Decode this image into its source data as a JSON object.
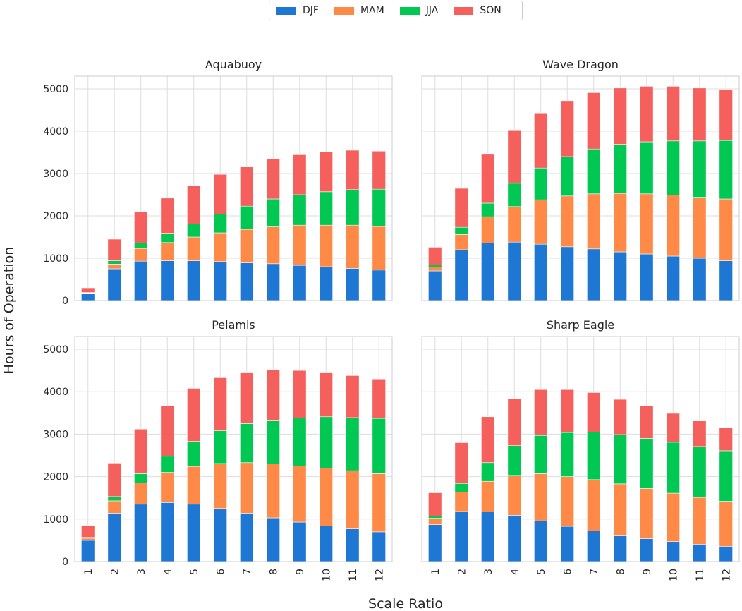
{
  "chart_data": {
    "type": "bar",
    "stacked": true,
    "xlabel": "Scale Ratio",
    "ylabel": "Hours of Operation",
    "ylim": [
      0,
      5300
    ],
    "yticks": [
      0,
      1000,
      2000,
      3000,
      4000,
      5000
    ],
    "categories": [
      "1",
      "2",
      "3",
      "4",
      "5",
      "6",
      "7",
      "8",
      "9",
      "10",
      "11",
      "12"
    ],
    "legend": [
      {
        "name": "DJF",
        "color": "#1f77d4"
      },
      {
        "name": "MAM",
        "color": "#ff8a47"
      },
      {
        "name": "JJA",
        "color": "#00c853"
      },
      {
        "name": "SON",
        "color": "#f5605d"
      }
    ],
    "panels": [
      {
        "title": "Aquabuoy",
        "series": [
          {
            "name": "DJF",
            "values": [
              170,
              750,
              930,
              940,
              940,
              920,
              890,
              870,
              830,
              800,
              760,
              720
            ]
          },
          {
            "name": "MAM",
            "values": [
              10,
              110,
              300,
              430,
              560,
              680,
              790,
              870,
              950,
              980,
              1020,
              1030
            ]
          },
          {
            "name": "JJA",
            "values": [
              10,
              80,
              130,
              220,
              310,
              440,
              550,
              660,
              720,
              790,
              840,
              880
            ]
          },
          {
            "name": "SON",
            "values": [
              110,
              510,
              740,
              830,
              910,
              940,
              940,
              950,
              960,
              940,
              930,
              900
            ]
          }
        ]
      },
      {
        "title": "Wave Dragon",
        "series": [
          {
            "name": "DJF",
            "values": [
              700,
              1200,
              1360,
              1380,
              1330,
              1270,
              1220,
              1150,
              1100,
              1050,
              1000,
              940
            ]
          },
          {
            "name": "MAM",
            "values": [
              90,
              360,
              620,
              840,
              1050,
              1200,
              1300,
              1380,
              1420,
              1440,
              1440,
              1460
            ]
          },
          {
            "name": "JJA",
            "values": [
              50,
              170,
              320,
              550,
              750,
              930,
              1060,
              1160,
              1230,
              1280,
              1330,
              1380
            ]
          },
          {
            "name": "SON",
            "values": [
              420,
              920,
              1170,
              1260,
              1300,
              1320,
              1330,
              1330,
              1310,
              1290,
              1250,
              1210
            ]
          }
        ]
      },
      {
        "title": "Pelamis",
        "series": [
          {
            "name": "DJF",
            "values": [
              500,
              1140,
              1350,
              1390,
              1350,
              1250,
              1140,
              1030,
              930,
              840,
              770,
              700
            ]
          },
          {
            "name": "MAM",
            "values": [
              50,
              290,
              500,
              710,
              890,
              1060,
              1190,
              1270,
              1320,
              1360,
              1370,
              1370
            ]
          },
          {
            "name": "JJA",
            "values": [
              20,
              100,
              220,
              380,
              590,
              770,
              920,
              1030,
              1130,
              1210,
              1250,
              1300
            ]
          },
          {
            "name": "SON",
            "values": [
              280,
              790,
              1050,
              1190,
              1250,
              1250,
              1210,
              1180,
              1120,
              1050,
              990,
              930
            ]
          }
        ]
      },
      {
        "title": "Sharp Eagle",
        "series": [
          {
            "name": "DJF",
            "values": [
              870,
              1180,
              1170,
              1090,
              960,
              830,
              720,
              620,
              540,
              470,
              410,
              360
            ]
          },
          {
            "name": "MAM",
            "values": [
              150,
              460,
              720,
              940,
              1110,
              1170,
              1210,
              1210,
              1180,
              1140,
              1100,
              1060
            ]
          },
          {
            "name": "JJA",
            "values": [
              50,
              200,
              440,
              700,
              900,
              1040,
              1120,
              1160,
              1180,
              1200,
              1200,
              1190
            ]
          },
          {
            "name": "SON",
            "values": [
              550,
              960,
              1080,
              1110,
              1080,
              1010,
              930,
              830,
              770,
              680,
              610,
              550
            ]
          }
        ]
      }
    ]
  }
}
